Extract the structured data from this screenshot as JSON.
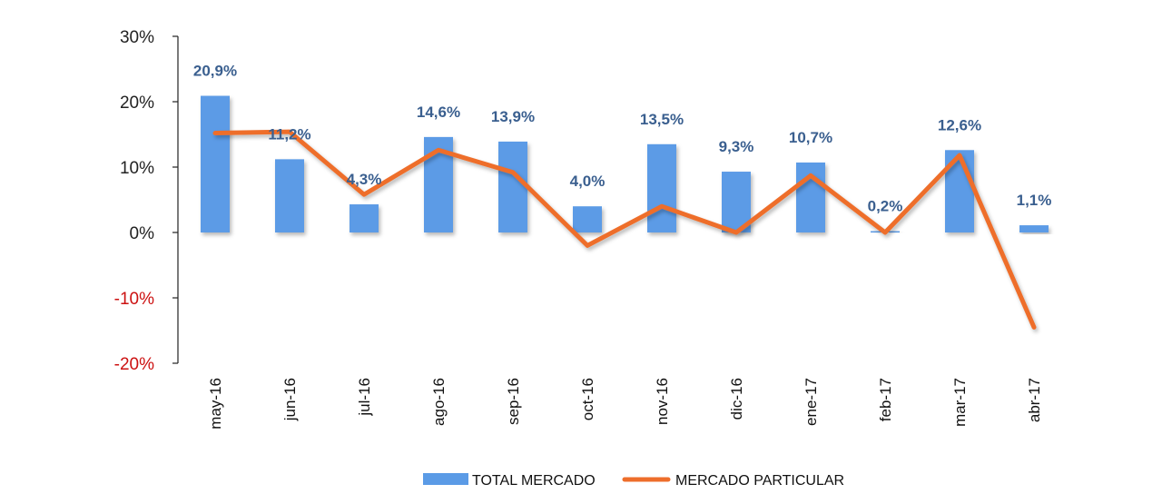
{
  "chart_data": {
    "type": "bar",
    "title": "",
    "xlabel": "",
    "ylabel": "",
    "ylim": [
      -20,
      30
    ],
    "yticks": [
      30,
      20,
      10,
      0,
      -10,
      -20
    ],
    "ytick_labels": [
      "30%",
      "20%",
      "10%",
      "0%",
      "-10%",
      "-20%"
    ],
    "negative_tick_color": "#cc1111",
    "categories": [
      "may-16",
      "jun-16",
      "jul-16",
      "ago-16",
      "sep-16",
      "oct-16",
      "nov-16",
      "dic-16",
      "ene-17",
      "feb-17",
      "mar-17",
      "abr-17"
    ],
    "series": [
      {
        "name": "TOTAL MERCADO",
        "kind": "bar",
        "color": "#5b9be6",
        "values": [
          20.9,
          11.2,
          4.3,
          14.6,
          13.9,
          4.0,
          13.5,
          9.3,
          10.7,
          0.2,
          12.6,
          1.1
        ],
        "labels": [
          "20,9%",
          "11,2%",
          "4,3%",
          "14,6%",
          "13,9%",
          "4,0%",
          "13,5%",
          "9,3%",
          "10,7%",
          "0,2%",
          "12,6%",
          "1,1%"
        ]
      },
      {
        "name": "MERCADO PARTICULAR",
        "kind": "line",
        "color": "#ee6e2b",
        "values": [
          15.2,
          15.4,
          5.8,
          12.6,
          9.2,
          -2.0,
          4.0,
          0.0,
          8.7,
          0.0,
          11.8,
          -14.5
        ]
      }
    ],
    "legend_position": "bottom-center"
  }
}
